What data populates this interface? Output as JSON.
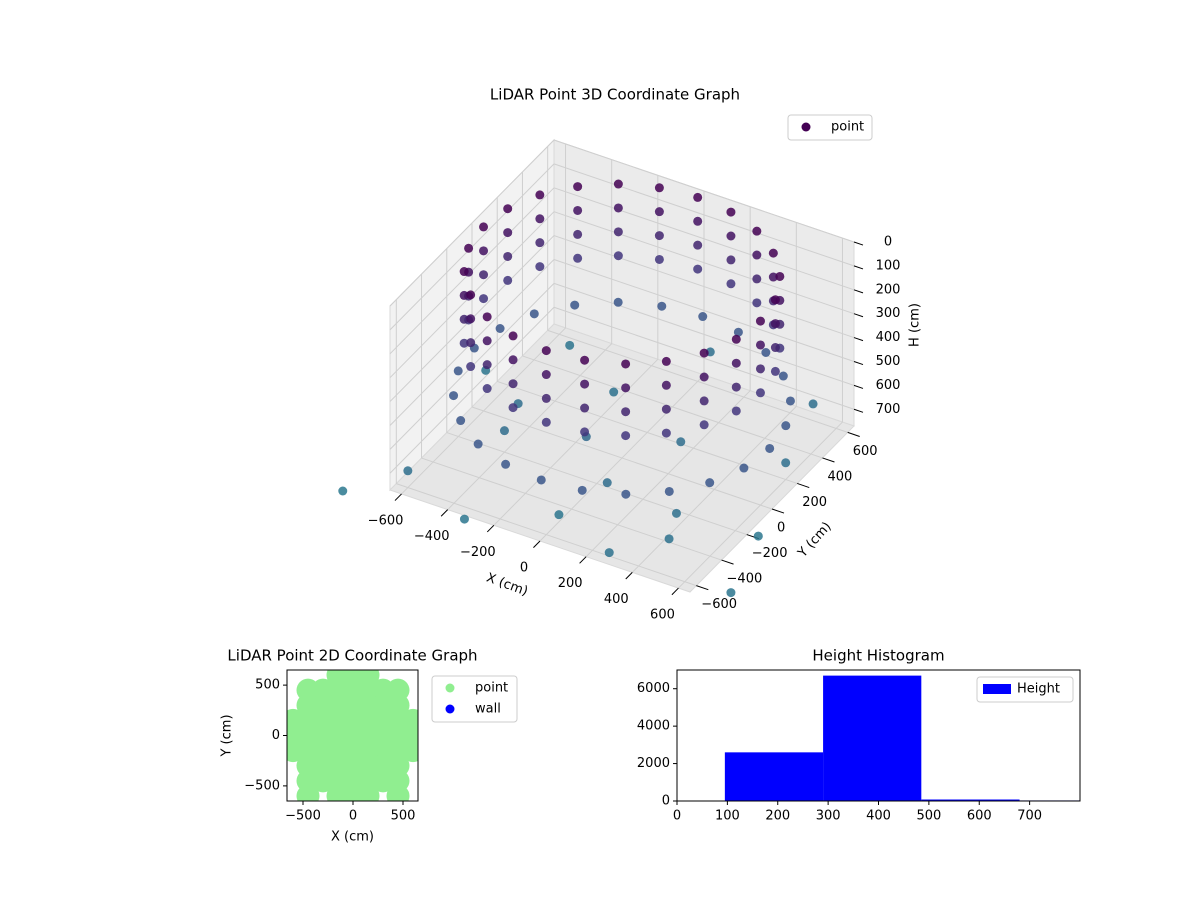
{
  "chart_data": [
    {
      "type": "scatter3d",
      "title": "LiDAR Point 3D Coordinate Graph",
      "xlabel": "X (cm)",
      "ylabel": "Y (cm)",
      "zlabel": "H (cm)",
      "xlim": [
        -650,
        650
      ],
      "ylim": [
        -650,
        650
      ],
      "zlim": [
        770,
        0
      ],
      "xticks": [
        {
          "value": -600,
          "label": "−600"
        },
        {
          "value": -400,
          "label": "−400"
        },
        {
          "value": -200,
          "label": "−200"
        },
        0,
        200,
        400,
        600
      ],
      "yticks": [
        {
          "value": -600,
          "label": "−600"
        },
        {
          "value": -400,
          "label": "−400"
        },
        {
          "value": -200,
          "label": "−200"
        },
        0,
        200,
        400,
        600
      ],
      "zticks": [
        0,
        100,
        200,
        300,
        400,
        500,
        600,
        700
      ],
      "colormap": [
        "#440154",
        "#414487",
        "#2a788e"
      ],
      "legend": "upper right",
      "series": [
        {
          "name": "point",
          "color": "#440154",
          "x": [
            -600,
            -400,
            -200,
            0,
            200,
            400,
            600,
            -500,
            -100,
            300,
            500,
            -300,
            100,
            -700,
            700,
            -800,
            800,
            0,
            -450,
            450,
            640,
            619,
            555,
            452,
            320,
            166,
            0,
            -166,
            -320,
            -452,
            -555,
            -619,
            -640,
            -619,
            -555,
            -452,
            -320,
            -166,
            0,
            166,
            320,
            452,
            555,
            619,
            600,
            580,
            520,
            424,
            300,
            155,
            0,
            -155,
            -300,
            -424,
            -520,
            -580,
            -600,
            -580,
            -520,
            -424,
            -300,
            -155,
            0,
            155,
            300,
            424,
            520,
            580,
            600,
            580,
            520,
            424,
            300,
            155,
            0,
            -155,
            -300,
            -424,
            -520,
            -580,
            -600,
            -580,
            -520,
            -424,
            -300,
            -155,
            0,
            155,
            300,
            424,
            520,
            580,
            600,
            580,
            520,
            424,
            300,
            155,
            0,
            -155,
            -300,
            -424,
            -520,
            -580,
            -600,
            -580,
            -520,
            -424,
            -300,
            -155,
            0,
            155,
            300,
            424,
            520,
            580,
            600,
            580,
            520,
            424,
            300,
            155,
            0,
            -155,
            -300,
            -424,
            -520,
            -580,
            -600,
            -580,
            -520,
            -424,
            -300,
            -155,
            0,
            155,
            300,
            424,
            520,
            580
          ],
          "y": [
            -600,
            -200,
            300,
            -500,
            100,
            -300,
            200,
            500,
            -100,
            -650,
            600,
            -700,
            -300,
            200,
            -200,
            -750,
            -600,
            700,
            0,
            -450,
            0,
            166,
            320,
            452,
            555,
            619,
            640,
            619,
            555,
            452,
            320,
            166,
            0,
            -166,
            -320,
            -452,
            -555,
            -619,
            -640,
            -619,
            -555,
            -452,
            -320,
            -166,
            0,
            155,
            300,
            424,
            520,
            580,
            600,
            580,
            520,
            424,
            300,
            155,
            0,
            -155,
            -300,
            -424,
            -520,
            -580,
            -600,
            -580,
            -520,
            -424,
            -300,
            -155,
            0,
            155,
            300,
            424,
            520,
            580,
            600,
            580,
            520,
            424,
            300,
            155,
            0,
            -155,
            -300,
            -424,
            -520,
            -580,
            -600,
            -580,
            -520,
            -424,
            -300,
            -155,
            0,
            155,
            300,
            424,
            520,
            580,
            600,
            580,
            520,
            424,
            300,
            155,
            0,
            -155,
            -300,
            -424,
            -520,
            -580,
            -600,
            -580,
            -520,
            -424,
            -300,
            -155,
            0,
            155,
            300,
            424,
            520,
            580,
            600,
            580,
            520,
            424,
            300,
            155,
            0,
            -155,
            -300,
            -424,
            -520,
            -580,
            -600,
            -580,
            -520,
            -424,
            -300,
            -155
          ],
          "z": [
            700,
            680,
            720,
            740,
            690,
            710,
            700,
            730,
            660,
            720,
            700,
            750,
            680,
            740,
            760,
            770,
            750,
            700,
            690,
            720,
            520,
            520,
            520,
            520,
            520,
            520,
            520,
            520,
            520,
            520,
            520,
            520,
            520,
            520,
            520,
            520,
            520,
            520,
            520,
            520,
            520,
            520,
            520,
            520,
            300,
            300,
            300,
            300,
            300,
            300,
            300,
            300,
            300,
            300,
            300,
            300,
            300,
            300,
            300,
            300,
            300,
            300,
            300,
            300,
            300,
            300,
            300,
            300,
            200,
            200,
            200,
            200,
            200,
            200,
            200,
            200,
            200,
            200,
            200,
            200,
            200,
            200,
            200,
            200,
            200,
            200,
            200,
            200,
            200,
            200,
            200,
            200,
            100,
            100,
            100,
            100,
            100,
            100,
            100,
            100,
            100,
            100,
            100,
            100,
            100,
            100,
            100,
            100,
            100,
            100,
            100,
            100,
            100,
            100,
            100,
            100,
            0,
            0,
            0,
            0,
            0,
            0,
            0,
            0,
            0,
            0,
            0,
            0,
            0,
            0,
            0,
            0,
            0,
            0,
            0,
            0,
            0,
            0,
            0,
            0
          ]
        }
      ]
    },
    {
      "type": "scatter",
      "title": "LiDAR Point 2D Coordinate Graph",
      "xlabel": "X (cm)",
      "ylabel": "Y (cm)",
      "xlim": [
        -660,
        650
      ],
      "ylim": [
        -650,
        650
      ],
      "xticks": [
        {
          "value": -500,
          "label": "−500"
        },
        0,
        500
      ],
      "yticks": [
        {
          "value": -500,
          "label": "−500"
        },
        0,
        500
      ],
      "legend": "outside right",
      "series": [
        {
          "name": "point",
          "color": "#90ee90",
          "x": [
            -150,
            0,
            150,
            -450,
            -300,
            -150,
            0,
            150,
            300,
            450,
            -450,
            -300,
            -150,
            0,
            150,
            300,
            450,
            -600,
            -450,
            -300,
            -150,
            0,
            150,
            300,
            450,
            600,
            -600,
            -450,
            -300,
            -150,
            0,
            150,
            300,
            450,
            600,
            -600,
            -450,
            -300,
            -150,
            0,
            150,
            300,
            450,
            600,
            -450,
            -300,
            -150,
            0,
            150,
            300,
            450,
            -450,
            -300,
            -150,
            0,
            150,
            300,
            450,
            -450,
            -150,
            0,
            150,
            450
          ],
          "y": [
            600,
            600,
            600,
            450,
            450,
            450,
            450,
            450,
            450,
            450,
            300,
            300,
            300,
            300,
            300,
            300,
            300,
            150,
            150,
            150,
            150,
            150,
            150,
            150,
            150,
            150,
            0,
            0,
            0,
            0,
            0,
            0,
            0,
            0,
            0,
            -150,
            -150,
            -150,
            -150,
            -150,
            -150,
            -150,
            -150,
            -150,
            -300,
            -300,
            -300,
            -300,
            -300,
            -300,
            -300,
            -450,
            -450,
            -450,
            -450,
            -450,
            -450,
            -450,
            -600,
            -600,
            -600,
            -600,
            -600
          ]
        },
        {
          "name": "wall",
          "color": "#0000ff",
          "x": [],
          "y": []
        }
      ]
    },
    {
      "type": "histogram",
      "title": "Height Histogram",
      "name": "Height",
      "color": "#0000ff",
      "bins": [
        95,
        290,
        485,
        680,
        875
      ],
      "counts": [
        2600,
        6700,
        80,
        30
      ],
      "xlim": [
        0,
        800
      ],
      "ylim": [
        0,
        7000
      ],
      "xticks": [
        0,
        100,
        200,
        300,
        400,
        500,
        600,
        700
      ],
      "yticks": [
        0,
        2000,
        4000,
        6000
      ],
      "legend": "upper right"
    }
  ]
}
